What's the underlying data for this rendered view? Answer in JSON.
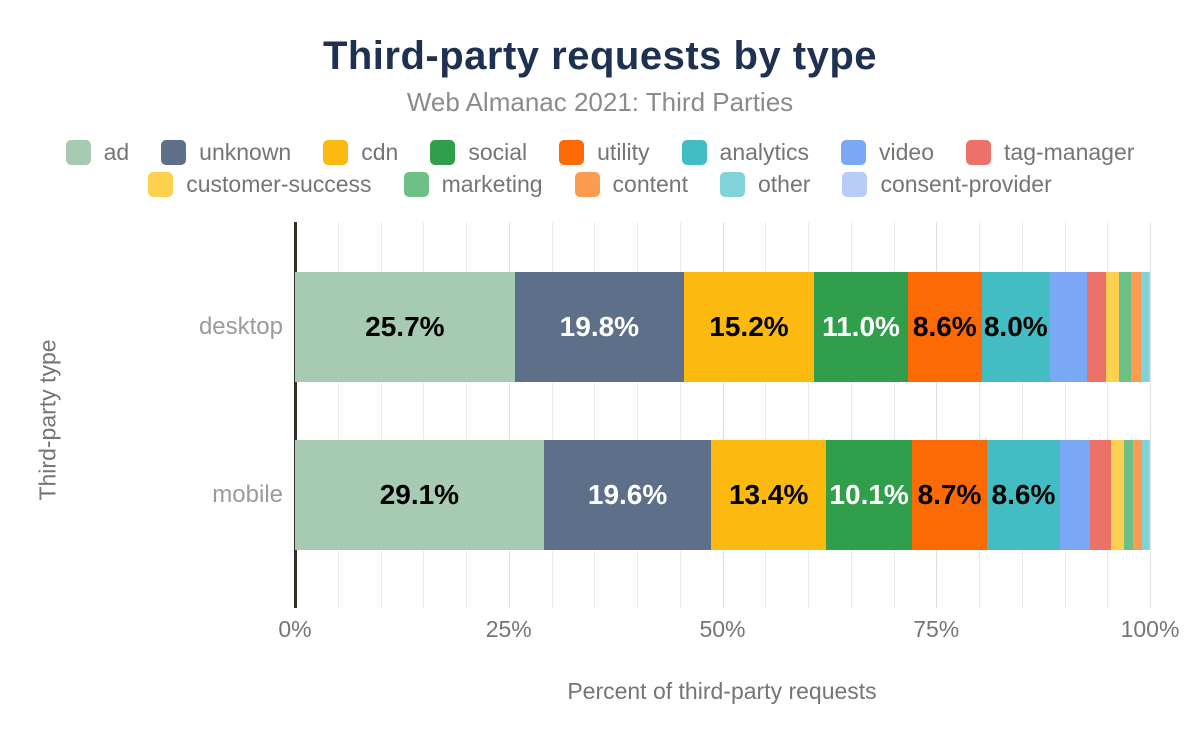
{
  "chart": {
    "title": "Third-party requests by type",
    "subtitle": "Web Almanac 2021: Third Parties",
    "xlabel": "Percent of third-party requests",
    "ylabel": "Third-party type"
  },
  "colors": {
    "title_navy": "#1e3150",
    "axis_line": "#342e28",
    "muted_text": "#757575",
    "category_text": "#9b9b9b",
    "subtitle_text": "#8b8b8b",
    "gridline_minor": "#ececec",
    "gridline_major": "#e0e0e0"
  },
  "chart_data": {
    "type": "bar",
    "orientation": "horizontal",
    "stacked": true,
    "title": "Third-party requests by type",
    "subtitle": "Web Almanac 2021: Third Parties",
    "xlabel": "Percent of third-party requests",
    "ylabel": "Third-party type",
    "categories": [
      "desktop",
      "mobile"
    ],
    "xlim": [
      0,
      100
    ],
    "x_ticks": [
      "0%",
      "25%",
      "50%",
      "75%",
      "100%"
    ],
    "x_tick_values": [
      0,
      25,
      50,
      75,
      100
    ],
    "grid": {
      "minor_step_pct": 5,
      "major_step_pct": 25,
      "grid_on": true
    },
    "legend_position": "top",
    "legend_rows": [
      [
        "ad",
        "unknown",
        "cdn",
        "social",
        "utility",
        "analytics",
        "video",
        "tag-manager"
      ],
      [
        "customer-success",
        "marketing",
        "content",
        "other",
        "consent-provider"
      ]
    ],
    "series": [
      {
        "name": "ad",
        "color": "#a6cab2",
        "label_color": "#000000",
        "values": [
          25.7,
          29.1
        ],
        "labels": [
          "25.7%",
          "29.1%"
        ]
      },
      {
        "name": "unknown",
        "color": "#5e7089",
        "label_color": "#ffffff",
        "values": [
          19.8,
          19.6
        ],
        "labels": [
          "19.8%",
          "19.6%"
        ]
      },
      {
        "name": "cdn",
        "color": "#fcb90f",
        "label_color": "#000000",
        "values": [
          15.2,
          13.4
        ],
        "labels": [
          "15.2%",
          "13.4%"
        ]
      },
      {
        "name": "social",
        "color": "#309e4a",
        "label_color": "#ffffff",
        "values": [
          11.0,
          10.1
        ],
        "labels": [
          "11.0%",
          "10.1%"
        ]
      },
      {
        "name": "utility",
        "color": "#fb6a05",
        "label_color": "#000000",
        "values": [
          8.6,
          8.7
        ],
        "labels": [
          "8.6%",
          "8.7%"
        ]
      },
      {
        "name": "analytics",
        "color": "#43bdc3",
        "label_color": "#000000",
        "values": [
          8.0,
          8.6
        ],
        "labels": [
          "8.0%",
          "8.6%"
        ]
      },
      {
        "name": "video",
        "color": "#7aa8f5",
        "label_color": "#000000",
        "values": [
          4.3,
          3.5
        ],
        "labels": [
          null,
          null
        ]
      },
      {
        "name": "tag-manager",
        "color": "#ec7168",
        "label_color": "#000000",
        "values": [
          2.2,
          2.4
        ],
        "labels": [
          null,
          null
        ]
      },
      {
        "name": "customer-success",
        "color": "#fdd04f",
        "label_color": "#000000",
        "values": [
          1.6,
          1.6
        ],
        "labels": [
          null,
          null
        ]
      },
      {
        "name": "marketing",
        "color": "#6dc186",
        "label_color": "#000000",
        "values": [
          1.4,
          1.0
        ],
        "labels": [
          null,
          null
        ]
      },
      {
        "name": "content",
        "color": "#fc9c50",
        "label_color": "#000000",
        "values": [
          1.2,
          1.1
        ],
        "labels": [
          null,
          null
        ]
      },
      {
        "name": "other",
        "color": "#80d4d9",
        "label_color": "#000000",
        "values": [
          0.9,
          0.8
        ],
        "labels": [
          null,
          null
        ]
      },
      {
        "name": "consent-provider",
        "color": "#b7cdf8",
        "label_color": "#000000",
        "values": [
          0.1,
          0.1
        ],
        "labels": [
          null,
          null
        ]
      }
    ]
  }
}
